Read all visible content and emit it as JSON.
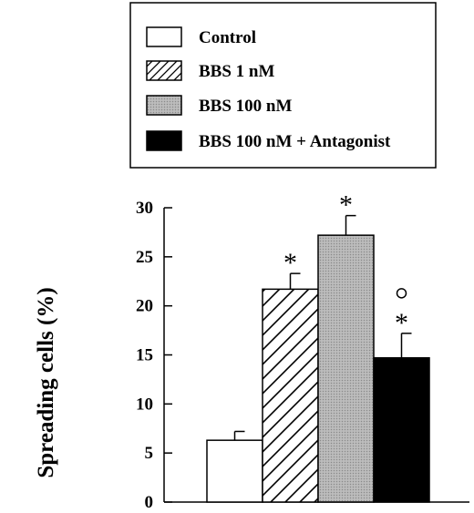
{
  "chart_data": {
    "type": "bar",
    "ylabel": "Spreading cells (%)",
    "ylim": [
      0,
      30
    ],
    "yticks": [
      0,
      5,
      10,
      15,
      20,
      25,
      30
    ],
    "legend_position": "top",
    "series": [
      {
        "name": "Control",
        "value": 6.3,
        "error": 0.9,
        "fill": "white",
        "annotation": ""
      },
      {
        "name": "BBS 1 nM",
        "value": 21.7,
        "error": 1.6,
        "fill": "hatched",
        "annotation": "*"
      },
      {
        "name": "BBS 100 nM",
        "value": 27.2,
        "error": 2.0,
        "fill": "gray",
        "annotation": "*"
      },
      {
        "name": "BBS 100 nM + Antagonist",
        "value": 14.7,
        "error": 2.5,
        "fill": "black",
        "annotation": "*",
        "annotation2": "o"
      }
    ],
    "colors": {
      "gray": "#b4b4b4",
      "black": "#000000",
      "white": "#ffffff"
    }
  }
}
